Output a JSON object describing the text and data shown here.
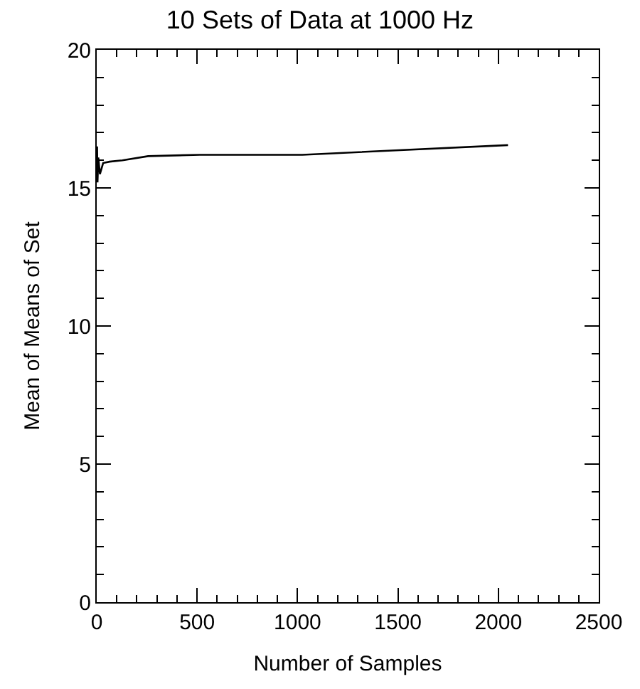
{
  "chart_data": {
    "type": "line",
    "title": "10 Sets of Data at 1000 Hz",
    "xlabel": "Number of Samples",
    "ylabel": "Mean of Means of Set",
    "x": [
      2,
      4,
      8,
      16,
      32,
      64,
      128,
      256,
      512,
      1024,
      2048
    ],
    "series": [
      {
        "color": "#000000",
        "values": [
          16.5,
          15.2,
          16.1,
          15.5,
          15.9,
          15.95,
          16.0,
          16.15,
          16.2,
          16.2,
          16.55
        ]
      }
    ],
    "xlim": [
      0,
      2500
    ],
    "xticks": [
      0,
      500,
      1000,
      1500,
      2000,
      2500
    ],
    "ylim": [
      0,
      20
    ],
    "yticks": [
      0,
      5,
      10,
      15,
      20
    ],
    "marker": "none",
    "line_style": "solid"
  }
}
